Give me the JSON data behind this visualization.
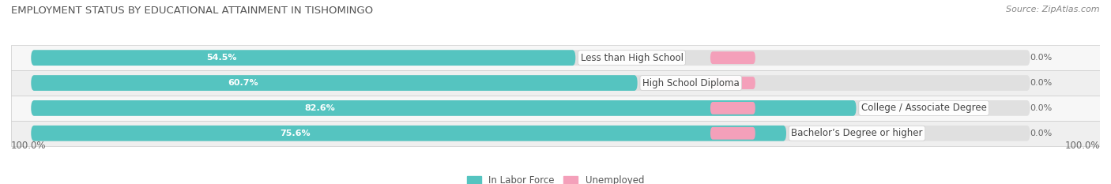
{
  "title": "EMPLOYMENT STATUS BY EDUCATIONAL ATTAINMENT IN TISHOMINGO",
  "source": "Source: ZipAtlas.com",
  "categories": [
    "Less than High School",
    "High School Diploma",
    "College / Associate Degree",
    "Bachelor’s Degree or higher"
  ],
  "labor_force": [
    54.5,
    60.7,
    82.6,
    75.6
  ],
  "unemployed": [
    0.0,
    0.0,
    0.0,
    0.0
  ],
  "labor_force_color": "#55C4C0",
  "unemployed_color": "#F4A0BA",
  "bg_bar_color": "#E0E0E0",
  "row_light": "#F7F7F7",
  "row_dark": "#EFEFEF",
  "x_left_label": "100.0%",
  "x_right_label": "100.0%",
  "label_fontsize": 8.5,
  "title_fontsize": 9.5,
  "source_fontsize": 8,
  "legend_fontsize": 8.5,
  "value_fontsize": 8,
  "cat_fontsize": 8.5
}
